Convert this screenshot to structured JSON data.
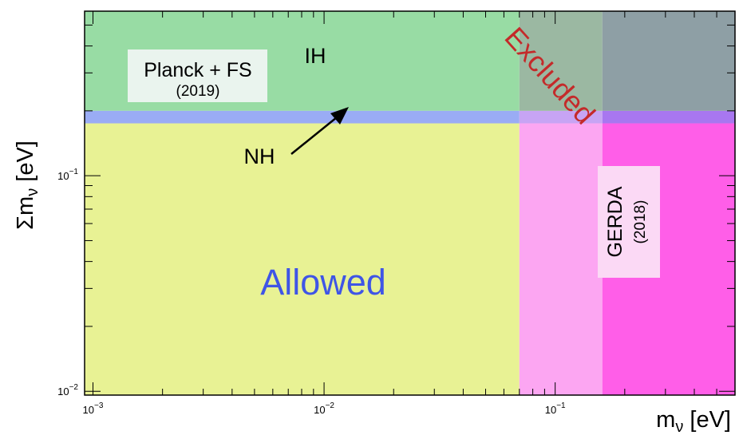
{
  "chart_data": {
    "type": "area",
    "xlabel": "m",
    "xlabel_sub": "ν",
    "xlabel_unit": " [eV]",
    "ylabel": "Σm",
    "ylabel_sub": "ν",
    "ylabel_unit": " [eV]",
    "xscale": "log",
    "yscale": "log",
    "xlim": [
      0.00092,
      0.6
    ],
    "ylim": [
      0.0096,
      0.58
    ],
    "x_ticks": [
      {
        "value": 0.001,
        "base": "10",
        "exp": "−3"
      },
      {
        "value": 0.01,
        "base": "10",
        "exp": "−2"
      },
      {
        "value": 0.1,
        "base": "10",
        "exp": "−1"
      }
    ],
    "y_ticks": [
      {
        "value": 0.01,
        "base": "10",
        "exp": "−2"
      },
      {
        "value": 0.1,
        "base": "10",
        "exp": "−1"
      }
    ],
    "grid": false,
    "regions": [
      {
        "name": "allowed",
        "x": [
          0.00092,
          0.07
        ],
        "y": [
          0.0096,
          0.175
        ],
        "color": "#e8f294"
      },
      {
        "name": "ih",
        "x": [
          0.00092,
          0.07
        ],
        "y": [
          0.2,
          0.58
        ],
        "color": "#98dca4"
      },
      {
        "name": "nh-band",
        "x": [
          0.00092,
          0.07
        ],
        "y": [
          0.175,
          0.2
        ],
        "color": "#9aacf5"
      },
      {
        "name": "gerda-excluded",
        "x": [
          0.07,
          0.16
        ],
        "y": [
          0.0096,
          0.175
        ],
        "color": "#fca6f2"
      },
      {
        "name": "gerda-nh-overlap",
        "x": [
          0.07,
          0.16
        ],
        "y": [
          0.175,
          0.2
        ],
        "color": "#c7a4f4"
      },
      {
        "name": "planck-gerda-overlap",
        "x": [
          0.07,
          0.16
        ],
        "y": [
          0.2,
          0.58
        ],
        "color": "#9bb8a2"
      },
      {
        "name": "full-excluded",
        "x": [
          0.16,
          0.6
        ],
        "y": [
          0.0096,
          0.175
        ],
        "color": "#ff5ee8"
      },
      {
        "name": "full-nh-overlap",
        "x": [
          0.16,
          0.6
        ],
        "y": [
          0.175,
          0.2
        ],
        "color": "#a877f0"
      },
      {
        "name": "full-ih-overlap",
        "x": [
          0.16,
          0.6
        ],
        "y": [
          0.2,
          0.58
        ],
        "color": "#8e9fa5"
      }
    ],
    "annotations": {
      "ih": "IH",
      "nh": "NH",
      "allowed": "Allowed",
      "excluded": "Excluded",
      "planck_line1": "Planck + FS",
      "planck_line2": "(2019)",
      "gerda_line1": "GERDA",
      "gerda_line2": "(2018)"
    }
  }
}
